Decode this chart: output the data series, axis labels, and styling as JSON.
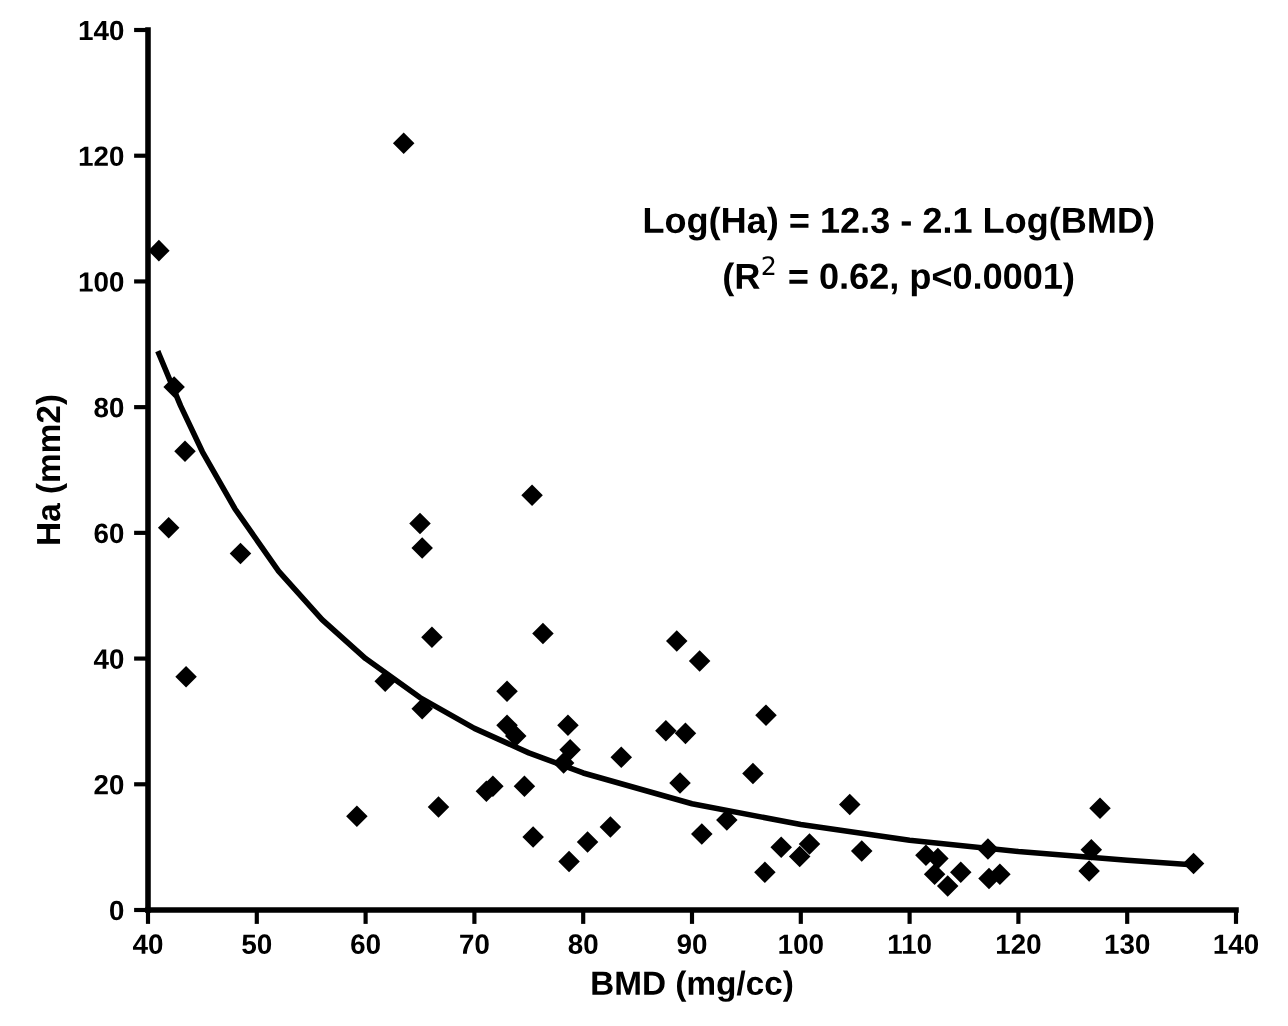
{
  "chart_data": {
    "type": "scatter",
    "xlabel": "BMD (mg/cc)",
    "ylabel": "Ha (mm2)",
    "xlim": [
      40,
      140
    ],
    "xticks": [
      40,
      50,
      60,
      70,
      80,
      90,
      100,
      110,
      120,
      130,
      140
    ],
    "ylim": [
      0,
      140
    ],
    "yticks": [
      0,
      20,
      40,
      60,
      80,
      100,
      120,
      140
    ],
    "grid": false,
    "legend": false,
    "annotations": [
      "Log(Ha) = 12.3 - 2.1 Log(BMD)",
      "(R$^{2}$ = 0.62, p<0.0001)"
    ],
    "series": [
      {
        "color": "#000000",
        "marker": "diamond",
        "x": [
          41.0,
          42.4,
          43.4,
          41.9,
          43.5,
          48.5,
          59.2,
          61.8,
          65.0,
          65.2,
          66.1,
          65.2,
          66.7,
          71.1,
          71.7,
          73.0,
          73.0,
          73.8,
          63.5,
          75.3,
          76.3,
          74.6,
          75.4,
          78.6,
          78.8,
          78.2,
          78.7,
          80.4,
          82.5,
          83.5,
          88.6,
          90.7,
          87.6,
          89.4,
          88.9,
          90.9,
          93.2,
          96.8,
          95.6,
          98.2,
          96.7,
          99.9,
          100.8,
          104.5,
          105.6,
          111.5,
          112.6,
          112.3,
          113.5,
          114.7,
          117.2,
          117.3,
          118.3,
          126.7,
          126.5,
          127.5,
          136.1
        ],
        "values": [
          104.9,
          83.2,
          73.0,
          60.8,
          37.1,
          56.7,
          14.9,
          36.4,
          61.5,
          57.6,
          43.4,
          32.0,
          16.4,
          18.9,
          19.7,
          34.8,
          29.4,
          27.7,
          122.0,
          66.0,
          44.0,
          19.7,
          11.6,
          29.4,
          25.5,
          23.4,
          7.7,
          10.8,
          13.2,
          24.3,
          42.8,
          39.6,
          28.5,
          28.1,
          20.2,
          12.1,
          14.3,
          31.0,
          21.7,
          10.0,
          6.0,
          8.5,
          10.5,
          16.8,
          9.4,
          8.7,
          8.2,
          5.7,
          3.8,
          6.0,
          9.7,
          5.0,
          5.7,
          9.6,
          6.2,
          16.2,
          7.4
        ]
      },
      {
        "type": "line",
        "color": "#000000",
        "marker": "none",
        "line_style": "solid",
        "x": [
          41,
          43,
          45,
          48,
          52,
          56,
          60,
          65,
          70,
          75,
          80,
          90,
          100,
          110,
          120,
          130,
          136
        ],
        "values": [
          88.5,
          80.2,
          72.9,
          63.8,
          53.9,
          46.2,
          40.0,
          33.8,
          28.9,
          25.0,
          21.8,
          16.9,
          13.6,
          11.1,
          9.3,
          7.9,
          7.2
        ]
      }
    ]
  }
}
